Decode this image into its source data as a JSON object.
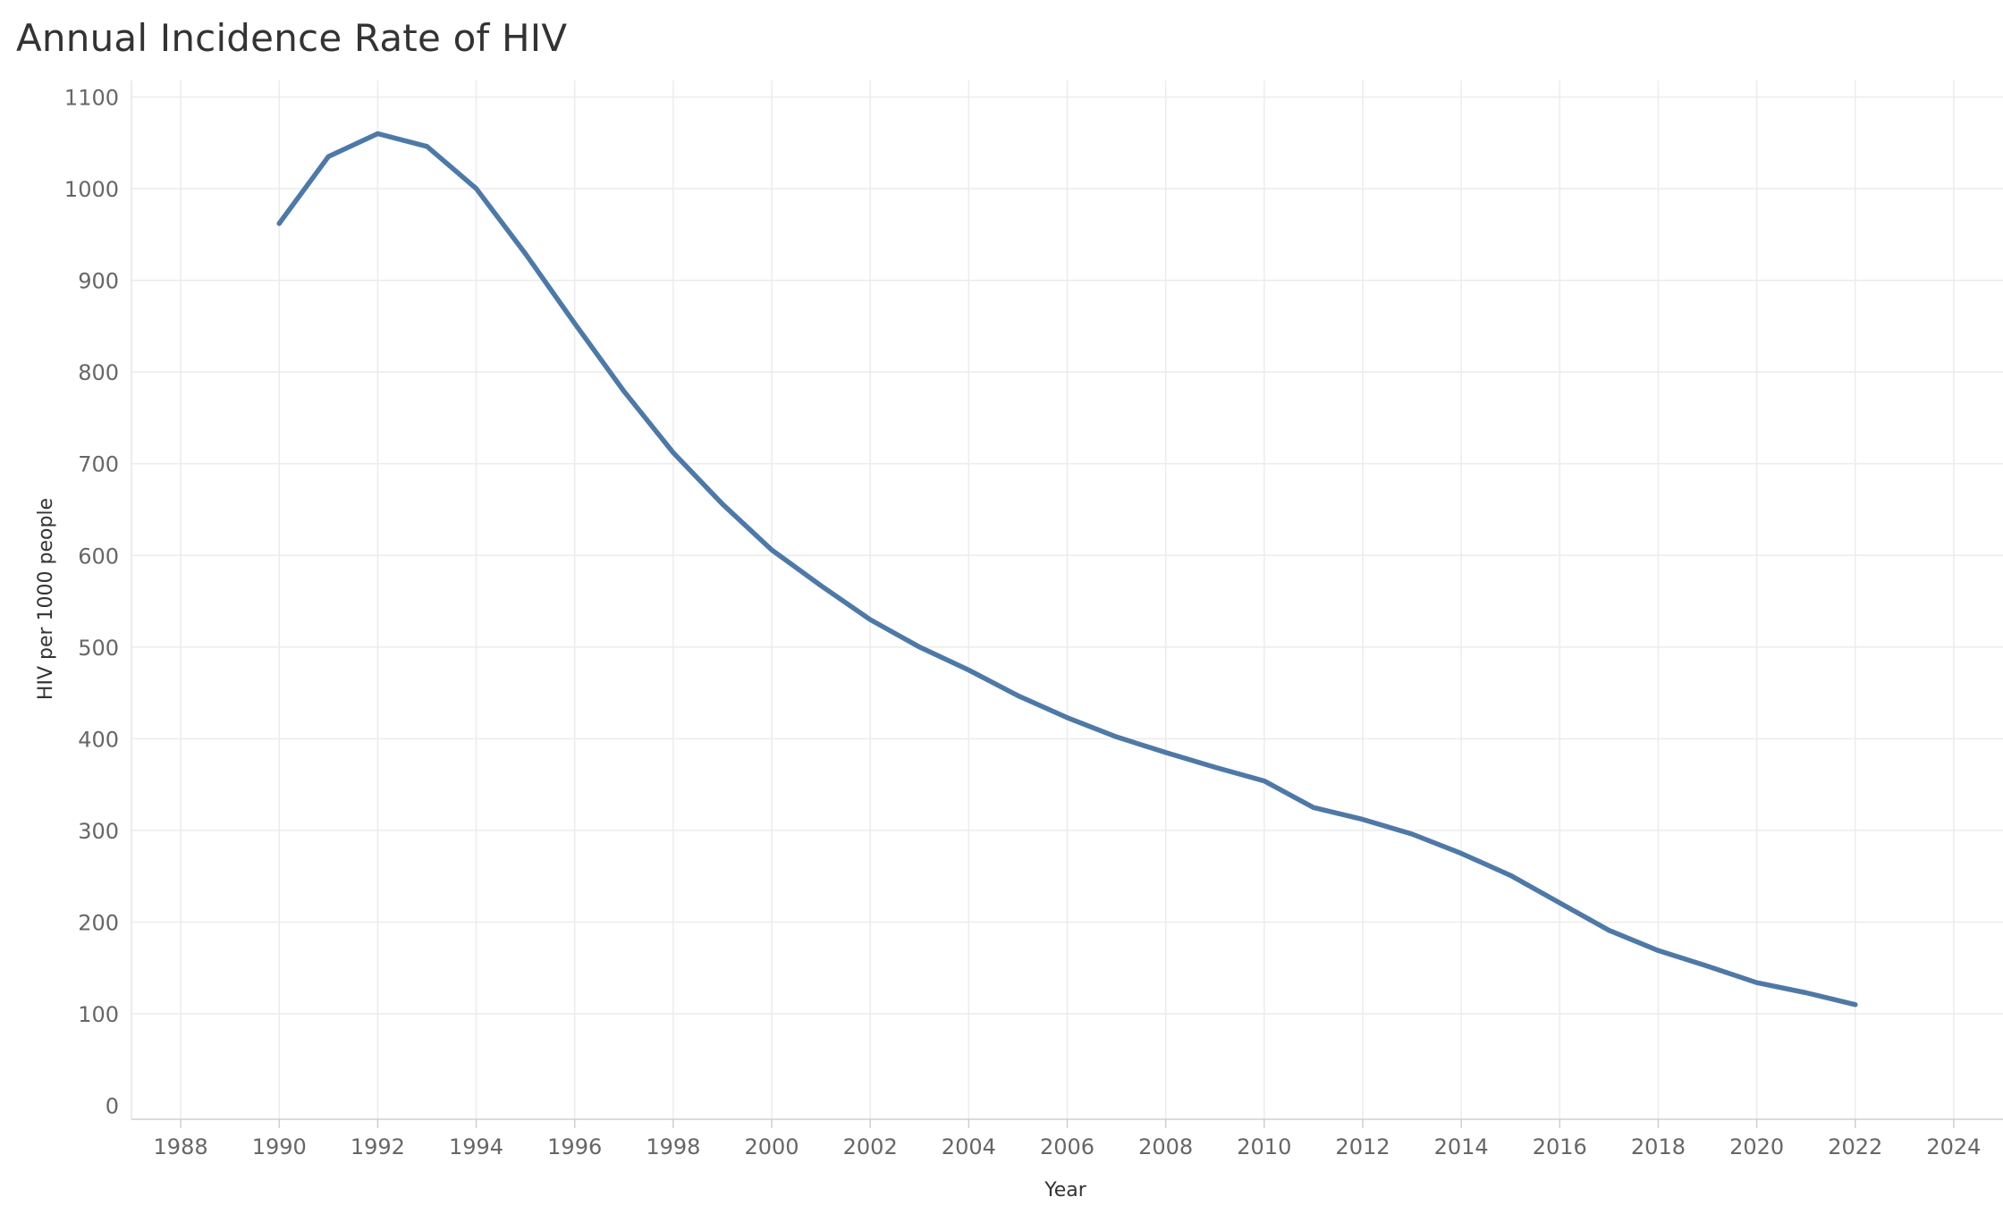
{
  "chart_data": {
    "type": "line",
    "title": "Annual Incidence Rate of HIV",
    "xlabel": "Year",
    "ylabel": "HIV per 1000 people",
    "xlim": [
      1987,
      2025
    ],
    "ylim": [
      -15,
      1118
    ],
    "x_ticks": [
      1988,
      1990,
      1992,
      1994,
      1996,
      1998,
      2000,
      2002,
      2004,
      2006,
      2008,
      2010,
      2012,
      2014,
      2016,
      2018,
      2020,
      2022,
      2024
    ],
    "y_ticks": [
      0,
      100,
      200,
      300,
      400,
      500,
      600,
      700,
      800,
      900,
      1000,
      1100
    ],
    "grid": true,
    "series": [
      {
        "color": "#4e79a7",
        "x": [
          1990,
          1991,
          1992,
          1993,
          1994,
          1995,
          1996,
          1997,
          1998,
          1999,
          2000,
          2001,
          2002,
          2003,
          2004,
          2005,
          2006,
          2007,
          2008,
          2009,
          2010,
          2011,
          2012,
          2013,
          2014,
          2015,
          2016,
          2017,
          2018,
          2019,
          2020,
          2021,
          2022
        ],
        "y": [
          962,
          1035,
          1060,
          1046,
          1000,
          929,
          853,
          779,
          712,
          656,
          606,
          567,
          530,
          500,
          475,
          447,
          423,
          402,
          385,
          369,
          354,
          325,
          312,
          296,
          275,
          251,
          221,
          191,
          169,
          152,
          134,
          123,
          110
        ]
      }
    ]
  }
}
